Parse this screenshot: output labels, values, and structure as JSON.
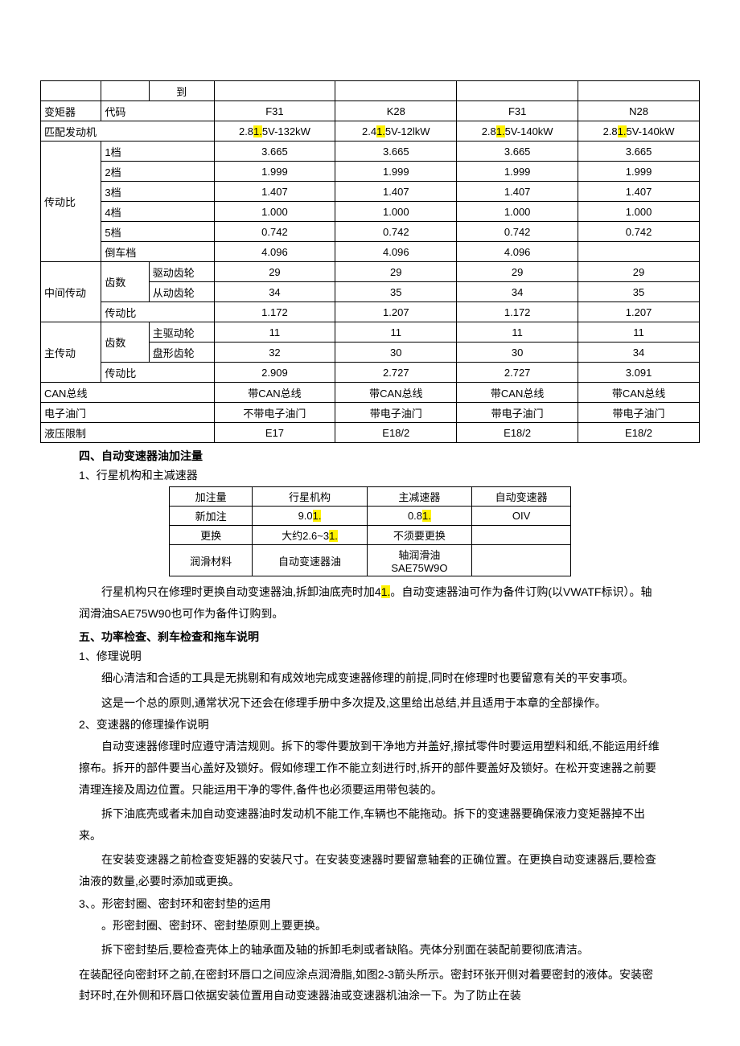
{
  "t1": {
    "top": {
      "到": "到"
    },
    "rows": [
      [
        "变矩器",
        "代码",
        "",
        "F31",
        "K28",
        "F31",
        "N28"
      ],
      [
        "匹配发动机",
        "",
        "",
        "2.8<hl>1.</hl>5V-132kW",
        "2.4<hl>1.</hl>5V-12lkW",
        "2.8<hl>1.</hl>5V-140kW",
        "2.8<hl>1.</hl>5V-140kW"
      ]
    ],
    "gear_label": "传动比",
    "gears": [
      [
        "1档",
        "3.665",
        "3.665",
        "3.665",
        "3.665"
      ],
      [
        "2档",
        "1.999",
        "1.999",
        "1.999",
        "1.999"
      ],
      [
        "3档",
        "1.407",
        "1.407",
        "1.407",
        "1.407"
      ],
      [
        "4档",
        "1.000",
        "1.000",
        "1.000",
        "1.000"
      ],
      [
        "5档",
        "0.742",
        "0.742",
        "0.742",
        "0.742"
      ],
      [
        "倒车档",
        "4.096",
        "4.096",
        "4.096",
        ""
      ]
    ],
    "mid_label": "中间传动",
    "mid_sub": "齿数",
    "mid": [
      [
        "驱动齿轮",
        "29",
        "29",
        "29",
        "29"
      ],
      [
        "从动齿轮",
        "34",
        "35",
        "34",
        "35"
      ]
    ],
    "mid_ratio": [
      "传动比",
      "1.172",
      "1.207",
      "1.172",
      "1.207"
    ],
    "main_label": "主传动",
    "main_sub": "齿数",
    "main": [
      [
        "主驱动轮",
        "11",
        "11",
        "11",
        "11"
      ],
      [
        "盘形齿轮",
        "32",
        "30",
        "30",
        "34"
      ]
    ],
    "main_ratio": [
      "传动比",
      "2.909",
      "2.727",
      "2.727",
      "3.091"
    ],
    "bottom": [
      [
        "CAN总线",
        "带CAN总线",
        "带CAN总线",
        "带CAN总线",
        "带CAN总线"
      ],
      [
        "电子油门",
        "不带电子油门",
        "带电子油门",
        "带电子油门",
        "带电子油门"
      ],
      [
        "液压限制",
        "E17",
        "E18/2",
        "E18/2",
        "E18/2"
      ]
    ]
  },
  "s4_title": "四、自动变速器油加注量",
  "s4_sub": "1、行星机构和主减速器",
  "t2": {
    "head": [
      "加注量",
      "行星机构",
      "主减速器",
      "自动变速器"
    ],
    "r1": [
      "新加注",
      "9.0<hl>1.</hl>",
      "0.8<hl>1.</hl>",
      "OIV"
    ],
    "r2": [
      "更换",
      "大约2.6~3<hl>1.</hl>",
      "不须要更换",
      ""
    ],
    "r3": [
      "润滑材料",
      "自动变速器油",
      "轴润滑油\nSAE75W9O",
      ""
    ]
  },
  "p1": "行星机构只在修理时更换自动变速器油,拆卸油底壳时加4<hl>1.</hl>。自动变速器油可作为备件订购(以VWATF标识）。轴润滑油SAE75W90也可作为备件订购到。",
  "s5_title": "五、功率检查、刹车检查和拖车说明",
  "s5_1": "1、修理说明",
  "p2": "细心清洁和合适的工具是无挑剔和有成效地完成变速器修理的前提,同时在修理时也要留意有关的平安事项。",
  "p3": "这是一个总的原则,通常状况下还会在修理手册中多次提及,这里给出总结,并且适用于本章的全部操作。",
  "s5_2": "2、变速器的修理操作说明",
  "p4": "自动变速器修理时应遵守清洁规则。拆下的零件要放到干净地方并盖好,擦拭零件时要运用塑料和纸,不能运用纤维擦布。拆开的部件要当心盖好及锁好。假如修理工作不能立刻进行时,拆开的部件要盖好及锁好。在松开变速器之前要清理连接及周边位置。只能运用干净的零件,备件也必须要运用带包装的。",
  "p5": "拆下油底壳或者未加自动变速器油时发动机不能工作,车辆也不能拖动。拆下的变速器要确保液力变矩器掉不出来。",
  "p6": "在安装变速器之前检查变矩器的安装尺寸。在安装变速器时要留意轴套的正确位置。在更换自动变速器后,要检查油液的数量,必要时添加或更换。",
  "s5_3": "3、。形密封圈、密封环和密封垫的运用",
  "p7": "。形密封圈、密封环、密封垫原则上要更换。",
  "p8": "拆下密封垫后,要检查壳体上的轴承面及轴的拆卸毛刺或者缺陷。壳体分别面在装配前要彻底清洁。",
  "p9": "在装配径向密封环之前,在密封环唇口之间应涂点润滑脂,如图2-3箭头所示。密封环张开侧对着要密封的液体。安装密封环时,在外侧和环唇口依据安装位置用自动变速器油或变速器机油涂一下。为了防止在装"
}
